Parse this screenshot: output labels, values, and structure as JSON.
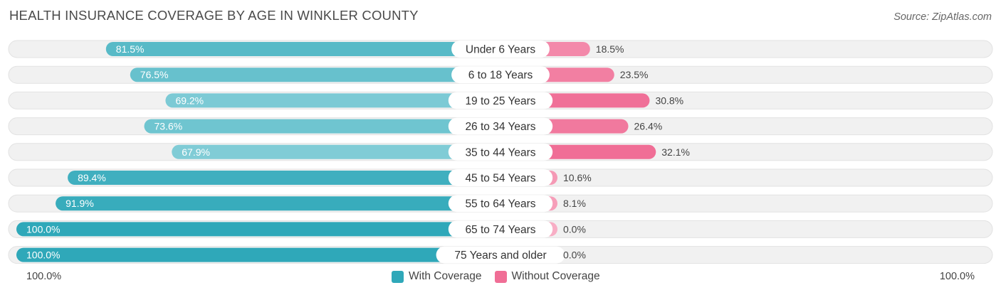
{
  "title": "HEALTH INSURANCE COVERAGE BY AGE IN WINKLER COUNTY",
  "source": "Source: ZipAtlas.com",
  "colors": {
    "with_dark": "#2fa8b9",
    "with_light": "#89d0d9",
    "without_dark": "#f06e96",
    "without_light": "#f8aec5",
    "track": "#f0f0f0"
  },
  "chart_data": {
    "type": "bar",
    "title": "HEALTH INSURANCE COVERAGE BY AGE IN WINKLER COUNTY",
    "categories": [
      "Under 6 Years",
      "6 to 18 Years",
      "19 to 25 Years",
      "26 to 34 Years",
      "35 to 44 Years",
      "45 to 54 Years",
      "55 to 64 Years",
      "65 to 74 Years",
      "75 Years and older"
    ],
    "series": [
      {
        "name": "With Coverage",
        "values": [
          81.5,
          76.5,
          69.2,
          73.6,
          67.9,
          89.4,
          91.9,
          100.0,
          100.0
        ],
        "labels": [
          "81.5%",
          "76.5%",
          "69.2%",
          "73.6%",
          "67.9%",
          "89.4%",
          "91.9%",
          "100.0%",
          "100.0%"
        ]
      },
      {
        "name": "Without Coverage",
        "values": [
          18.5,
          23.5,
          30.8,
          26.4,
          32.1,
          10.6,
          8.1,
          0.0,
          0.0
        ],
        "labels": [
          "18.5%",
          "23.5%",
          "30.8%",
          "26.4%",
          "32.1%",
          "10.6%",
          "8.1%",
          "0.0%",
          "0.0%"
        ]
      }
    ],
    "xlim": [
      0,
      100
    ],
    "axis_left_label": "100.0%",
    "axis_right_label": "100.0%",
    "legend": [
      "With Coverage",
      "Without Coverage"
    ],
    "legend_position": "bottom-center"
  }
}
